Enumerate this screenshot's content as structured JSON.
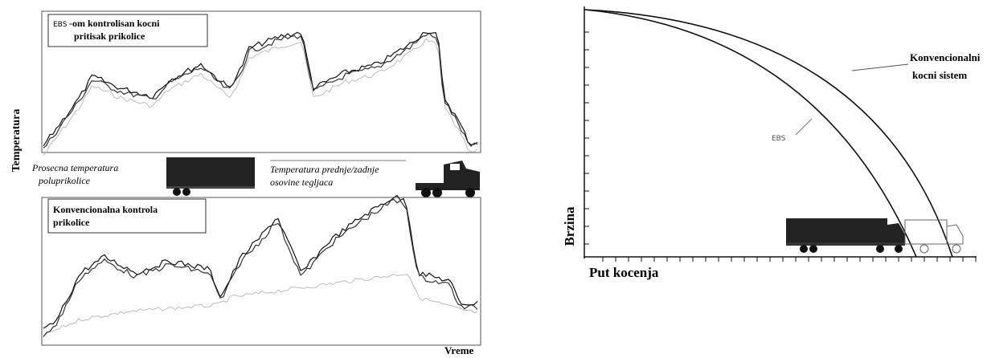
{
  "left": {
    "top_box": {
      "prefix": "EBS",
      "line1": "-om kontrolisan kocni",
      "line2": "pritisak prikolice"
    },
    "y_label": "Temperatura",
    "legend": {
      "trailer_line1": "Prosecna temperatura",
      "trailer_line2": "poluprikolice",
      "tractor_line1": "Temperatura prednje/zadnje",
      "tractor_line2": "osovine tegljaca"
    },
    "bottom_box": {
      "line1": "Konvencionalna kontrola",
      "line2": "prikolice"
    },
    "x_label": "Vreme"
  },
  "right": {
    "curve_label_line1": "Konvencionalni",
    "curve_label_line2": "kocni sistem",
    "ebs_label": "EBS",
    "y_label": "Brzina",
    "x_label": "Put kocenja"
  }
}
